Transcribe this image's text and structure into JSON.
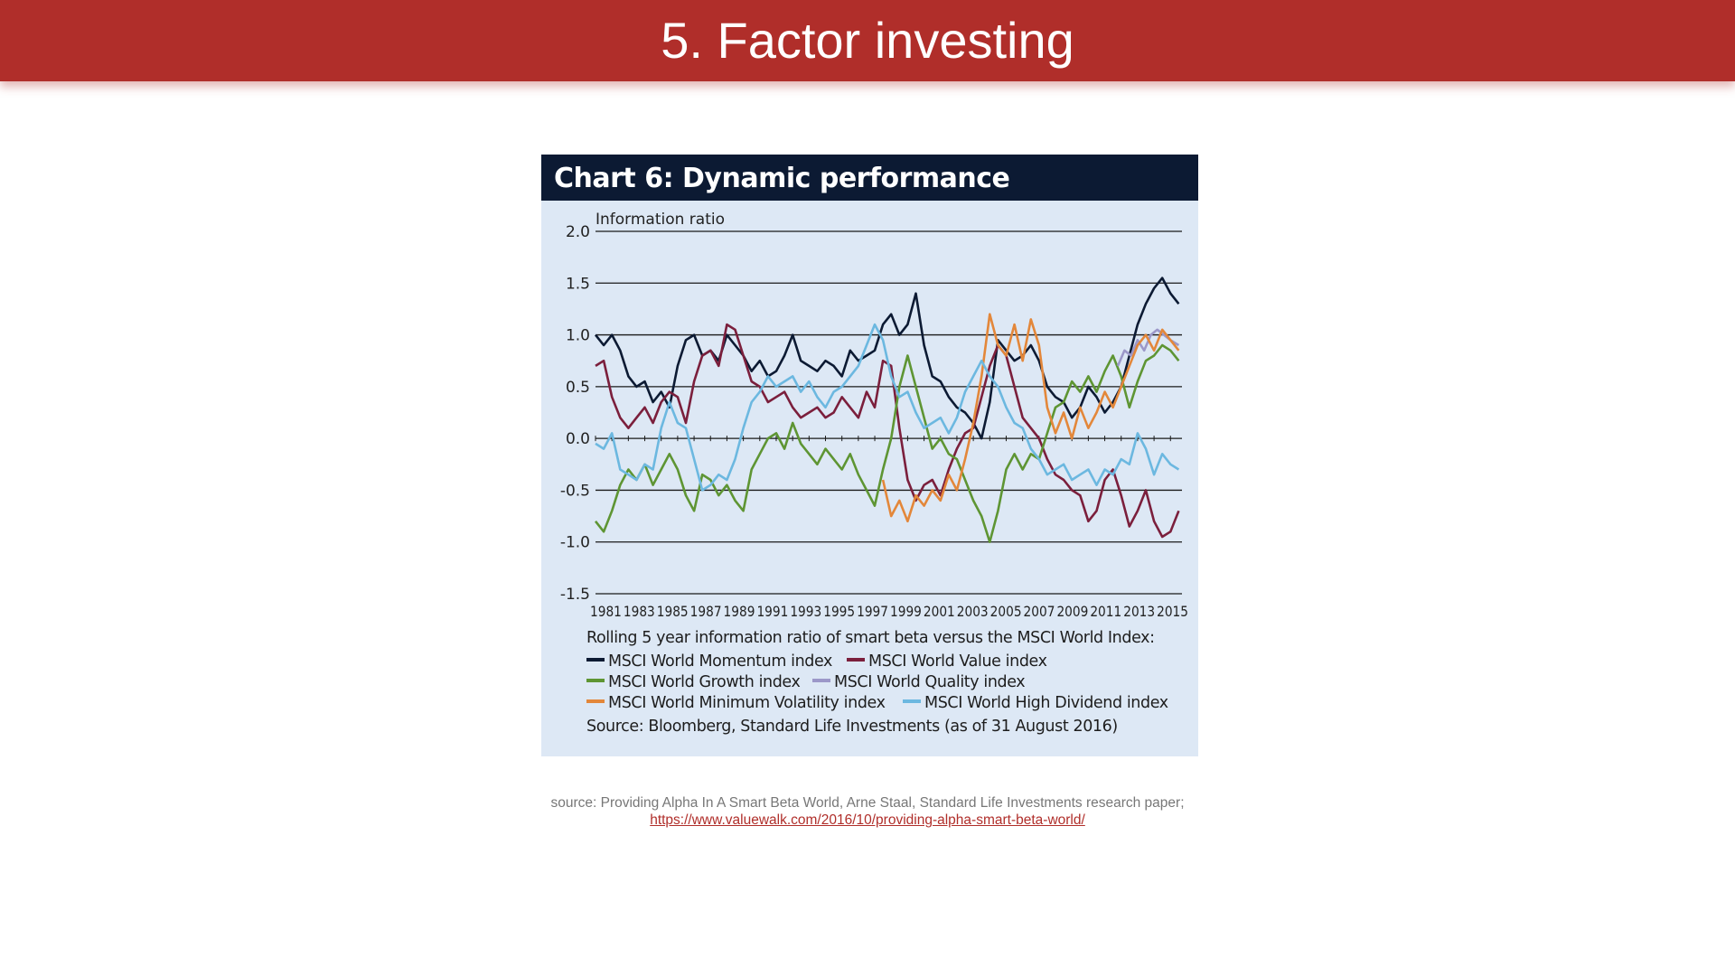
{
  "slide": {
    "title": "5. Factor investing"
  },
  "chart_header": "Chart 6: Dynamic performance",
  "chart_data": {
    "type": "line",
    "title": "Chart 6: Dynamic performance",
    "ylabel": "Information ratio",
    "xlabel": "",
    "ylim": [
      -1.5,
      2.0
    ],
    "yticks": [
      "2.0",
      "1.5",
      "1.0",
      "0.5",
      "0.0",
      "-0.5",
      "-1.0",
      "-1.5"
    ],
    "xticks": [
      "1981",
      "1983",
      "1985",
      "1987",
      "1989",
      "1991",
      "1993",
      "1995",
      "1997",
      "1999",
      "2001",
      "2003",
      "2005",
      "2007",
      "2009",
      "2011",
      "2013",
      "2015"
    ],
    "xlim": [
      1981,
      2016.7
    ],
    "grid": "horizontal",
    "caption": "Rolling 5 year information ratio of smart beta versus the MSCI World Index:",
    "series": [
      {
        "name": "MSCI World Momentum index",
        "color": "#0c1a33",
        "x": [
          1981,
          1981.5,
          1982,
          1982.5,
          1983,
          1983.5,
          1984,
          1984.5,
          1985,
          1985.5,
          1986,
          1986.5,
          1987,
          1987.5,
          1988,
          1988.5,
          1989,
          1989.5,
          1990,
          1990.5,
          1991,
          1991.5,
          1992,
          1992.5,
          1993,
          1993.5,
          1994,
          1994.5,
          1995,
          1995.5,
          1996,
          1996.5,
          1997,
          1997.5,
          1998,
          1998.5,
          1999,
          1999.5,
          2000,
          2000.5,
          2001,
          2001.5,
          2002,
          2002.5,
          2003,
          2003.5,
          2004,
          2004.5,
          2005,
          2005.5,
          2006,
          2006.5,
          2007,
          2007.5,
          2008,
          2008.5,
          2009,
          2009.5,
          2010,
          2010.5,
          2011,
          2011.5,
          2012,
          2012.5,
          2013,
          2013.5,
          2014,
          2014.5,
          2015,
          2015.5,
          2016,
          2016.5
        ],
        "values": [
          1.0,
          0.9,
          1.0,
          0.85,
          0.6,
          0.5,
          0.55,
          0.35,
          0.45,
          0.3,
          0.7,
          0.95,
          1.0,
          0.8,
          0.85,
          0.75,
          1.0,
          0.9,
          0.8,
          0.65,
          0.75,
          0.6,
          0.65,
          0.8,
          1.0,
          0.75,
          0.7,
          0.65,
          0.75,
          0.7,
          0.6,
          0.85,
          0.75,
          0.8,
          0.85,
          1.1,
          1.2,
          1.0,
          1.1,
          1.4,
          0.9,
          0.6,
          0.55,
          0.4,
          0.3,
          0.25,
          0.15,
          0.0,
          0.35,
          0.95,
          0.85,
          0.75,
          0.8,
          0.9,
          0.75,
          0.5,
          0.4,
          0.35,
          0.2,
          0.3,
          0.5,
          0.4,
          0.25,
          0.35,
          0.5,
          0.8,
          1.1,
          1.3,
          1.45,
          1.55,
          1.4,
          1.3
        ]
      },
      {
        "name": "MSCI World Value index",
        "color": "#7b1f3c",
        "x": [
          1981,
          1981.5,
          1982,
          1982.5,
          1983,
          1983.5,
          1984,
          1984.5,
          1985,
          1985.5,
          1986,
          1986.5,
          1987,
          1987.5,
          1988,
          1988.5,
          1989,
          1989.5,
          1990,
          1990.5,
          1991,
          1991.5,
          1992,
          1992.5,
          1993,
          1993.5,
          1994,
          1994.5,
          1995,
          1995.5,
          1996,
          1996.5,
          1997,
          1997.5,
          1998,
          1998.5,
          1999,
          1999.5,
          2000,
          2000.5,
          2001,
          2001.5,
          2002,
          2002.5,
          2003,
          2003.5,
          2004,
          2004.5,
          2005,
          2005.5,
          2006,
          2006.5,
          2007,
          2007.5,
          2008,
          2008.5,
          2009,
          2009.5,
          2010,
          2010.5,
          2011,
          2011.5,
          2012,
          2012.5,
          2013,
          2013.5,
          2014,
          2014.5,
          2015,
          2015.5,
          2016,
          2016.5
        ],
        "values": [
          0.7,
          0.75,
          0.4,
          0.2,
          0.1,
          0.2,
          0.3,
          0.15,
          0.35,
          0.45,
          0.4,
          0.15,
          0.55,
          0.8,
          0.85,
          0.7,
          1.1,
          1.05,
          0.8,
          0.55,
          0.5,
          0.35,
          0.4,
          0.45,
          0.3,
          0.2,
          0.25,
          0.3,
          0.2,
          0.25,
          0.4,
          0.3,
          0.2,
          0.45,
          0.3,
          0.75,
          0.7,
          0.1,
          -0.4,
          -0.6,
          -0.45,
          -0.4,
          -0.55,
          -0.3,
          -0.1,
          0.05,
          0.1,
          0.4,
          0.7,
          0.9,
          0.8,
          0.5,
          0.2,
          0.1,
          0.0,
          -0.2,
          -0.35,
          -0.4,
          -0.5,
          -0.55,
          -0.8,
          -0.7,
          -0.4,
          -0.3,
          -0.55,
          -0.85,
          -0.7,
          -0.5,
          -0.8,
          -0.95,
          -0.9,
          -0.7
        ]
      },
      {
        "name": "MSCI World Growth index",
        "color": "#5e9533",
        "x": [
          1981,
          1981.5,
          1982,
          1982.5,
          1983,
          1983.5,
          1984,
          1984.5,
          1985,
          1985.5,
          1986,
          1986.5,
          1987,
          1987.5,
          1988,
          1988.5,
          1989,
          1989.5,
          1990,
          1990.5,
          1991,
          1991.5,
          1992,
          1992.5,
          1993,
          1993.5,
          1994,
          1994.5,
          1995,
          1995.5,
          1996,
          1996.5,
          1997,
          1997.5,
          1998,
          1998.5,
          1999,
          1999.5,
          2000,
          2000.5,
          2001,
          2001.5,
          2002,
          2002.5,
          2003,
          2003.5,
          2004,
          2004.5,
          2005,
          2005.5,
          2006,
          2006.5,
          2007,
          2007.5,
          2008,
          2008.5,
          2009,
          2009.5,
          2010,
          2010.5,
          2011,
          2011.5,
          2012,
          2012.5,
          2013,
          2013.5,
          2014,
          2014.5,
          2015,
          2015.5,
          2016,
          2016.5
        ],
        "values": [
          -0.8,
          -0.9,
          -0.7,
          -0.45,
          -0.3,
          -0.4,
          -0.25,
          -0.45,
          -0.3,
          -0.15,
          -0.3,
          -0.55,
          -0.7,
          -0.35,
          -0.4,
          -0.55,
          -0.45,
          -0.6,
          -0.7,
          -0.3,
          -0.15,
          0.0,
          0.05,
          -0.1,
          0.15,
          -0.05,
          -0.15,
          -0.25,
          -0.1,
          -0.2,
          -0.3,
          -0.15,
          -0.35,
          -0.5,
          -0.65,
          -0.3,
          0.0,
          0.5,
          0.8,
          0.5,
          0.2,
          -0.1,
          0.0,
          -0.15,
          -0.2,
          -0.4,
          -0.6,
          -0.75,
          -1.0,
          -0.7,
          -0.3,
          -0.15,
          -0.3,
          -0.15,
          -0.2,
          0.05,
          0.3,
          0.35,
          0.55,
          0.45,
          0.6,
          0.45,
          0.65,
          0.8,
          0.6,
          0.3,
          0.55,
          0.75,
          0.8,
          0.9,
          0.85,
          0.75
        ]
      },
      {
        "name": "MSCI World Quality index",
        "color": "#9c98c9",
        "x": [
          2012.8,
          2013.2,
          2013.6,
          2014,
          2014.4,
          2014.8,
          2015.2,
          2015.6,
          2016,
          2016.5
        ],
        "values": [
          0.7,
          0.85,
          0.8,
          0.95,
          0.85,
          1.0,
          1.05,
          1.0,
          0.95,
          0.9
        ]
      },
      {
        "name": "MSCI World Minimum Volatility index",
        "color": "#e3873a",
        "x": [
          1998.5,
          1999,
          1999.5,
          2000,
          2000.5,
          2001,
          2001.5,
          2002,
          2002.5,
          2003,
          2003.5,
          2004,
          2004.5,
          2005,
          2005.5,
          2006,
          2006.5,
          2007,
          2007.5,
          2008,
          2008.5,
          2009,
          2009.5,
          2010,
          2010.5,
          2011,
          2011.5,
          2012,
          2012.5,
          2013,
          2013.5,
          2014,
          2014.5,
          2015,
          2015.5,
          2016,
          2016.5
        ],
        "values": [
          -0.4,
          -0.75,
          -0.6,
          -0.8,
          -0.55,
          -0.65,
          -0.5,
          -0.6,
          -0.35,
          -0.5,
          -0.2,
          0.15,
          0.6,
          1.2,
          0.9,
          0.8,
          1.1,
          0.75,
          1.15,
          0.9,
          0.3,
          0.05,
          0.25,
          0.0,
          0.3,
          0.1,
          0.25,
          0.45,
          0.3,
          0.5,
          0.7,
          0.9,
          1.0,
          0.85,
          1.05,
          0.95,
          0.85
        ]
      },
      {
        "name": "MSCI World High Dividend index",
        "color": "#6cb8e0",
        "x": [
          1981,
          1981.5,
          1982,
          1982.5,
          1983,
          1983.5,
          1984,
          1984.5,
          1985,
          1985.5,
          1986,
          1986.5,
          1987,
          1987.5,
          1988,
          1988.5,
          1989,
          1989.5,
          1990,
          1990.5,
          1991,
          1991.5,
          1992,
          1992.5,
          1993,
          1993.5,
          1994,
          1994.5,
          1995,
          1995.5,
          1996,
          1996.5,
          1997,
          1997.5,
          1998,
          1998.5,
          1999,
          1999.5,
          2000,
          2000.5,
          2001,
          2001.5,
          2002,
          2002.5,
          2003,
          2003.5,
          2004,
          2004.5,
          2005,
          2005.5,
          2006,
          2006.5,
          2007,
          2007.5,
          2008,
          2008.5,
          2009,
          2009.5,
          2010,
          2010.5,
          2011,
          2011.5,
          2012,
          2012.5,
          2013,
          2013.5,
          2014,
          2014.5,
          2015,
          2015.5,
          2016,
          2016.5
        ],
        "values": [
          -0.05,
          -0.1,
          0.05,
          -0.3,
          -0.35,
          -0.4,
          -0.25,
          -0.3,
          0.1,
          0.35,
          0.15,
          0.1,
          -0.2,
          -0.5,
          -0.45,
          -0.35,
          -0.4,
          -0.2,
          0.1,
          0.35,
          0.45,
          0.6,
          0.5,
          0.55,
          0.6,
          0.45,
          0.55,
          0.4,
          0.3,
          0.45,
          0.5,
          0.6,
          0.7,
          0.9,
          1.1,
          0.95,
          0.6,
          0.4,
          0.45,
          0.25,
          0.1,
          0.15,
          0.2,
          0.05,
          0.2,
          0.45,
          0.6,
          0.75,
          0.6,
          0.5,
          0.3,
          0.15,
          0.1,
          -0.1,
          -0.2,
          -0.35,
          -0.3,
          -0.25,
          -0.4,
          -0.35,
          -0.3,
          -0.45,
          -0.3,
          -0.35,
          -0.2,
          -0.25,
          0.05,
          -0.1,
          -0.35,
          -0.15,
          -0.25,
          -0.3
        ]
      }
    ]
  },
  "legend_rows": [
    [
      {
        "label": "MSCI World Momentum index",
        "color": "#0c1a33"
      },
      {
        "label": "MSCI World Value index",
        "color": "#7b1f3c"
      }
    ],
    [
      {
        "label": "MSCI World Growth index",
        "color": "#5e9533"
      },
      {
        "label": "MSCI World Quality index",
        "color": "#9c98c9"
      }
    ],
    [
      {
        "label": "MSCI World Minimum Volatility index",
        "color": "#e3873a"
      },
      {
        "label": "MSCI World High Dividend index",
        "color": "#6cb8e0"
      }
    ]
  ],
  "chart_source": "Source: Bloomberg, Standard Life Investments (as of 31 August 2016)",
  "footnote": {
    "text": "source: Providing Alpha In A Smart Beta World, Arne Staal, Standard Life Investments research paper;",
    "link": "https://www.valuewalk.com/2016/10/providing-alpha-smart-beta-world/"
  }
}
